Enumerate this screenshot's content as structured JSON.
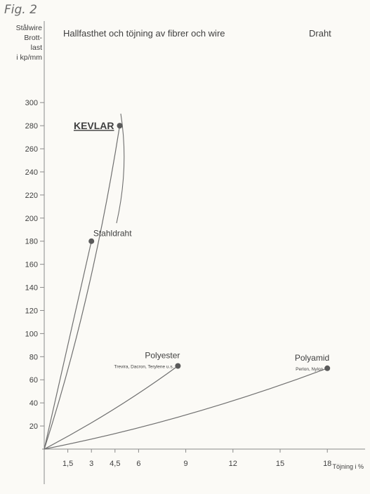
{
  "figure_label": "Fig. 2",
  "chart_data": {
    "type": "line",
    "title": "Hallfasthet och töjning av fibrer och wire",
    "title_right": "Draht",
    "ylabel_lines": [
      "Stålwire",
      "Brott-",
      "last",
      "i kp/mm"
    ],
    "xlabel": "Töjning i %",
    "x_ticks": [
      {
        "value": 1.5,
        "label": "1,5"
      },
      {
        "value": 3,
        "label": "3"
      },
      {
        "value": 4.5,
        "label": "4,5"
      },
      {
        "value": 6,
        "label": "6"
      },
      {
        "value": 9,
        "label": "9"
      },
      {
        "value": 12,
        "label": "12"
      },
      {
        "value": 15,
        "label": "15"
      },
      {
        "value": 18,
        "label": "18"
      }
    ],
    "y_ticks": [
      20,
      40,
      60,
      80,
      100,
      120,
      140,
      160,
      180,
      200,
      220,
      240,
      260,
      280,
      300
    ],
    "series": [
      {
        "name": "KEVLAR",
        "sublabel": "",
        "points": [
          [
            0,
            0
          ],
          [
            4.8,
            280
          ]
        ],
        "label_side": "left"
      },
      {
        "name": "Stahldraht",
        "sublabel": "",
        "points": [
          [
            0,
            0
          ],
          [
            3,
            180
          ]
        ],
        "label_side": "left"
      },
      {
        "name": "Polyester",
        "sublabel": "Trevira, Dacron, Terylene u.s.",
        "points": [
          [
            0,
            0
          ],
          [
            8.5,
            72
          ]
        ],
        "label_side": "left"
      },
      {
        "name": "Polyamid",
        "sublabel": "Perlon, Nylon",
        "points": [
          [
            0,
            0
          ],
          [
            18,
            70
          ]
        ],
        "label_side": "left"
      }
    ]
  }
}
